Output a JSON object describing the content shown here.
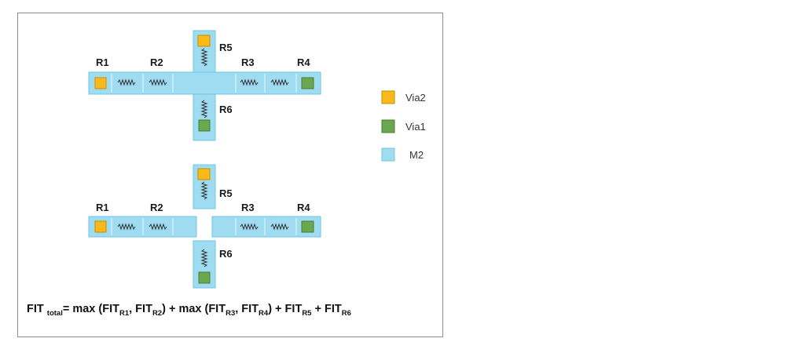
{
  "top_layout": {
    "labels": {
      "r1": "R1",
      "r2": "R2",
      "r3": "R3",
      "r4": "R4",
      "r5": "R5",
      "r6": "R6"
    }
  },
  "bottom_layout": {
    "labels": {
      "r1": "R1",
      "r2": "R2",
      "r3": "R3",
      "r4": "R4",
      "r5": "R5",
      "r6": "R6"
    }
  },
  "legend": {
    "items": [
      {
        "label": "Via2",
        "color": "#f9b91a"
      },
      {
        "label": "Via1",
        "color": "#6aa84f"
      },
      {
        "label": "M2",
        "color": "#9fdcf2"
      }
    ]
  },
  "formula": {
    "fit": "FIT ",
    "total_sub": "total",
    "eq_max1": "= max (FIT",
    "r1_sub": "R1",
    "comma1": ", FIT",
    "r2_sub": "R2",
    "close_max2": ") + max (FIT",
    "r3_sub": "R3",
    "comma2": ", FIT",
    "r4_sub": "R4",
    "plus_r5": ") + FIT",
    "r5_sub": "R5",
    "plus_r6": " + FIT",
    "r6_sub": "R6"
  }
}
